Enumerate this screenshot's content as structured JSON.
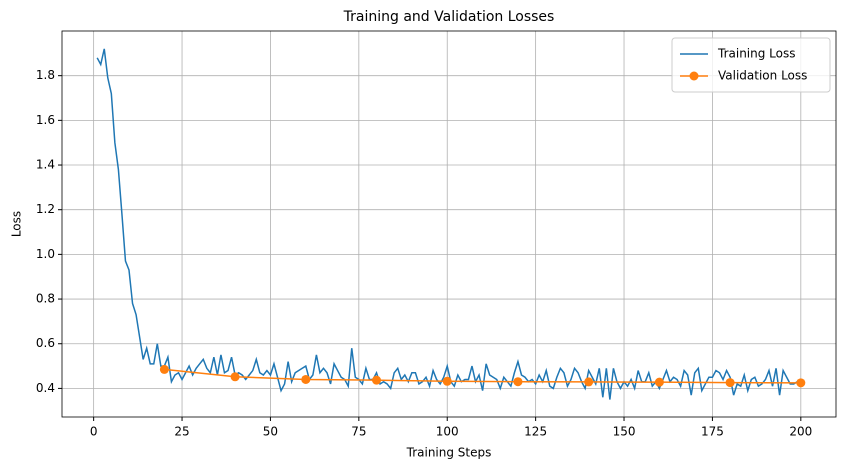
{
  "chart_data": {
    "type": "line",
    "title": "Training and Validation Losses",
    "x_label": "Training Steps",
    "y_label": "Loss",
    "xlim": [
      -8.95,
      209.95
    ],
    "xticks": [
      0,
      25,
      50,
      75,
      100,
      125,
      150,
      175,
      200
    ],
    "ylim": [
      0.272,
      2.0
    ],
    "yticks": [
      0.4,
      0.6,
      0.8,
      {
        "value": 1,
        "label": "1.0"
      },
      1.2,
      1.4,
      1.6,
      1.8
    ],
    "grid": true,
    "legend": "upper-right",
    "series": [
      {
        "name": "Training Loss",
        "color": "#1f77b4",
        "marker": false,
        "x": [
          1,
          2,
          3,
          4,
          5,
          6,
          7,
          8,
          9,
          10,
          11,
          12,
          13,
          14,
          15,
          16,
          17,
          18,
          19,
          20,
          21,
          22,
          23,
          24,
          25,
          26,
          27,
          28,
          29,
          30,
          31,
          32,
          33,
          34,
          35,
          36,
          37,
          38,
          39,
          40,
          41,
          42,
          43,
          44,
          45,
          46,
          47,
          48,
          49,
          50,
          51,
          52,
          53,
          54,
          55,
          56,
          57,
          58,
          59,
          60,
          61,
          62,
          63,
          64,
          65,
          66,
          67,
          68,
          69,
          70,
          71,
          72,
          73,
          74,
          75,
          76,
          77,
          78,
          79,
          80,
          81,
          82,
          83,
          84,
          85,
          86,
          87,
          88,
          89,
          90,
          91,
          92,
          93,
          94,
          95,
          96,
          97,
          98,
          99,
          100,
          101,
          102,
          103,
          104,
          105,
          106,
          107,
          108,
          109,
          110,
          111,
          112,
          113,
          114,
          115,
          116,
          117,
          118,
          119,
          120,
          121,
          122,
          123,
          124,
          125,
          126,
          127,
          128,
          129,
          130,
          131,
          132,
          133,
          134,
          135,
          136,
          137,
          138,
          139,
          140,
          141,
          142,
          143,
          144,
          145,
          146,
          147,
          148,
          149,
          150,
          151,
          152,
          153,
          154,
          155,
          156,
          157,
          158,
          159,
          160,
          161,
          162,
          163,
          164,
          165,
          166,
          167,
          168,
          169,
          170,
          171,
          172,
          173,
          174,
          175,
          176,
          177,
          178,
          179,
          180,
          181,
          182,
          183,
          184,
          185,
          186,
          187,
          188,
          189,
          190,
          191,
          192,
          193,
          194,
          195,
          196,
          197,
          198,
          199,
          200
        ],
        "values": [
          1.88,
          1.85,
          1.92,
          1.79,
          1.72,
          1.5,
          1.38,
          1.18,
          0.97,
          0.93,
          0.78,
          0.73,
          0.63,
          0.53,
          0.58,
          0.51,
          0.51,
          0.6,
          0.5,
          0.5,
          0.54,
          0.43,
          0.46,
          0.47,
          0.44,
          0.47,
          0.5,
          0.46,
          0.49,
          0.51,
          0.53,
          0.49,
          0.47,
          0.54,
          0.46,
          0.55,
          0.47,
          0.48,
          0.54,
          0.46,
          0.47,
          0.46,
          0.44,
          0.46,
          0.48,
          0.53,
          0.47,
          0.46,
          0.48,
          0.46,
          0.51,
          0.45,
          0.39,
          0.42,
          0.52,
          0.43,
          0.47,
          0.48,
          0.49,
          0.5,
          0.44,
          0.46,
          0.55,
          0.47,
          0.49,
          0.47,
          0.42,
          0.51,
          0.48,
          0.45,
          0.44,
          0.41,
          0.58,
          0.45,
          0.44,
          0.42,
          0.49,
          0.44,
          0.44,
          0.47,
          0.42,
          0.43,
          0.42,
          0.4,
          0.47,
          0.49,
          0.44,
          0.46,
          0.43,
          0.47,
          0.47,
          0.42,
          0.43,
          0.45,
          0.41,
          0.48,
          0.44,
          0.42,
          0.45,
          0.5,
          0.43,
          0.41,
          0.46,
          0.43,
          0.44,
          0.44,
          0.5,
          0.43,
          0.46,
          0.39,
          0.51,
          0.46,
          0.45,
          0.44,
          0.4,
          0.45,
          0.43,
          0.41,
          0.47,
          0.52,
          0.46,
          0.45,
          0.43,
          0.44,
          0.42,
          0.46,
          0.43,
          0.48,
          0.41,
          0.4,
          0.45,
          0.49,
          0.47,
          0.41,
          0.44,
          0.49,
          0.47,
          0.43,
          0.4,
          0.48,
          0.45,
          0.42,
          0.49,
          0.36,
          0.49,
          0.35,
          0.49,
          0.43,
          0.4,
          0.43,
          0.41,
          0.44,
          0.4,
          0.48,
          0.43,
          0.43,
          0.47,
          0.41,
          0.43,
          0.4,
          0.44,
          0.48,
          0.43,
          0.45,
          0.44,
          0.41,
          0.48,
          0.46,
          0.37,
          0.47,
          0.49,
          0.39,
          0.42,
          0.45,
          0.45,
          0.48,
          0.47,
          0.44,
          0.48,
          0.45,
          0.37,
          0.42,
          0.41,
          0.46,
          0.39,
          0.44,
          0.45,
          0.41,
          0.42,
          0.44,
          0.48,
          0.41,
          0.49,
          0.37,
          0.48,
          0.45,
          0.42,
          0.42,
          0.43,
          0.42
        ]
      },
      {
        "name": "Validation Loss",
        "color": "#ff7f0e",
        "marker": true,
        "x": [
          20,
          40,
          60,
          80,
          100,
          120,
          140,
          160,
          180,
          200
        ],
        "values": [
          0.485,
          0.452,
          0.44,
          0.437,
          0.432,
          0.43,
          0.429,
          0.428,
          0.426,
          0.425
        ]
      }
    ]
  }
}
